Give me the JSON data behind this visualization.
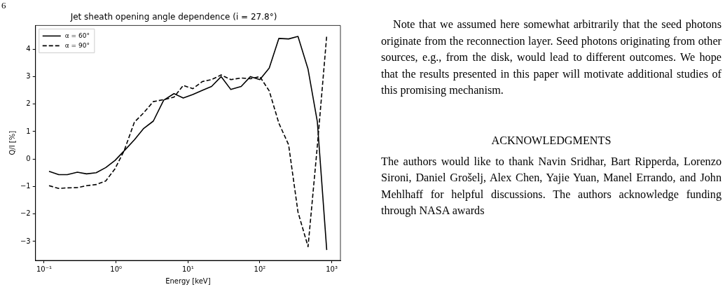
{
  "chart_data": {
    "type": "line",
    "title": "Jet sheath opening angle dependence (i = 27.8°)",
    "xlabel": "Energy [keV]",
    "ylabel": "Q/I [%]",
    "x": [
      0.117,
      0.16,
      0.21,
      0.29,
      0.39,
      0.53,
      0.72,
      0.97,
      1.3,
      1.8,
      2.4,
      3.3,
      4.6,
      6.4,
      8.6,
      11.7,
      15.9,
      21.3,
      29,
      39.5,
      55,
      74,
      100,
      135,
      184,
      251,
      339,
      468,
      630,
      851
    ],
    "series": [
      {
        "name": "α = 60°",
        "color": "#000000",
        "line_style": "solid",
        "values": [
          -0.45,
          -0.57,
          -0.57,
          -0.48,
          -0.54,
          -0.5,
          -0.31,
          -0.05,
          0.3,
          0.7,
          1.1,
          1.38,
          2.14,
          2.38,
          2.22,
          2.35,
          2.5,
          2.64,
          3.0,
          2.53,
          2.64,
          3.0,
          2.89,
          3.31,
          4.39,
          4.37,
          4.46,
          3.27,
          1.36,
          -3.31
        ]
      },
      {
        "name": "α = 90°",
        "color": "#000000",
        "line_style": "dashed",
        "values": [
          -0.97,
          -1.07,
          -1.05,
          -1.04,
          -0.97,
          -0.93,
          -0.8,
          -0.35,
          0.31,
          1.34,
          1.67,
          2.09,
          2.16,
          2.25,
          2.68,
          2.56,
          2.82,
          2.89,
          3.06,
          2.89,
          2.95,
          2.92,
          3.0,
          2.48,
          1.3,
          0.52,
          -1.93,
          -3.19,
          0.47,
          4.49
        ]
      }
    ],
    "log": "x",
    "xlim": [
      0.076,
      1320
    ],
    "xticks": [
      {
        "value": 0.1,
        "label": "10⁻¹"
      },
      {
        "value": 1,
        "label": "10⁰"
      },
      {
        "value": 10,
        "label": "10¹"
      },
      {
        "value": 100,
        "label": "10²"
      },
      {
        "value": 1000,
        "label": "10³"
      }
    ],
    "ylim": [
      -3.69,
      4.86
    ],
    "yticks": [
      -3,
      -2,
      -1,
      0,
      1,
      2,
      3,
      4
    ],
    "grid": false,
    "legend": "top left",
    "marker": "none",
    "annotations": [
      "6",
      "Note that we assumed here somewhat arbitrarily that the seed photons originate from the reconnection layer. Seed photons originating from other sources, e.g., from the disk, would lead to different outcomes.  We hope that the results presented in this paper will motivate additional studies of this promising mechanism.",
      "ACKNOWLEDGMENTS",
      "The authors would like to thank Navin Sridhar, Bart Ripperda, Lorenzo Sironi, Daniel Grošelj, Alex Chen, Yajie Yuan, Manel Errando, and John Mehlhaff for helpful discussions.  The authors acknowledge funding through NASA awards"
    ]
  }
}
